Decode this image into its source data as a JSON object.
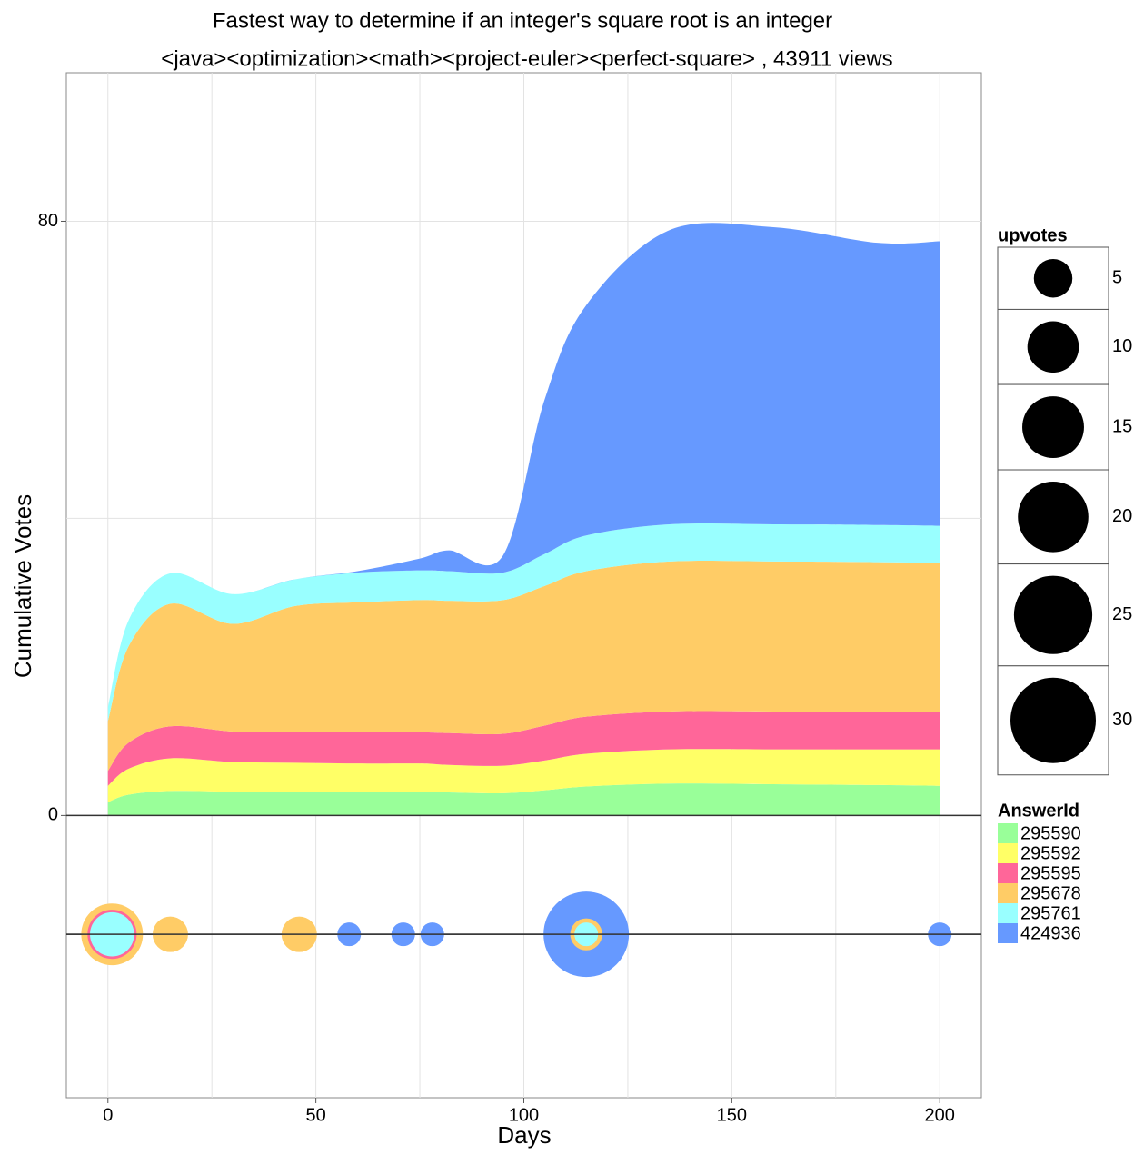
{
  "chart_data": {
    "type": "stream",
    "title": "Fastest way to determine if an integer's square root is an integer",
    "subtitle": "<java><optimization><math><project-euler><perfect-square> ,  43911  views",
    "x_label": "Days",
    "y_label": "Cumulative Votes",
    "x": [
      0,
      5,
      15,
      30,
      45,
      60,
      75,
      82,
      95,
      105,
      115,
      135,
      160,
      185,
      200
    ],
    "series": [
      {
        "name": "295590",
        "color": "#99ff99",
        "values": [
          1.8,
          2.8,
          3.3,
          3.2,
          3.2,
          3.2,
          3.2,
          3.1,
          3.0,
          3.4,
          3.9,
          4.3,
          4.2,
          4.1,
          4.0
        ],
        "event_days": [],
        "event_upvotes": []
      },
      {
        "name": "295592",
        "color": "#ffff66",
        "values": [
          2.2,
          3.5,
          4.4,
          4.0,
          3.9,
          3.8,
          3.8,
          3.7,
          3.7,
          4.0,
          4.4,
          4.6,
          4.7,
          4.8,
          4.9
        ],
        "event_days": [],
        "event_upvotes": []
      },
      {
        "name": "295595",
        "color": "#ff6699",
        "values": [
          2.0,
          3.5,
          4.3,
          4.1,
          4.1,
          4.2,
          4.2,
          4.3,
          4.3,
          4.7,
          5.0,
          5.1,
          5.1,
          5.1,
          5.1
        ],
        "event_days": [
          1
        ],
        "event_upvotes": [
          9
        ]
      },
      {
        "name": "295678",
        "color": "#ffcc66",
        "values": [
          6.7,
          13,
          16.5,
          14.5,
          17,
          17.5,
          17.8,
          17.8,
          18,
          18.8,
          19.6,
          20.2,
          20.2,
          20.1,
          20
        ],
        "event_days": [
          1,
          15,
          46,
          115
        ],
        "event_upvotes": [
          15,
          4,
          4,
          3
        ]
      },
      {
        "name": "295761",
        "color": "#99ffff",
        "values": [
          1.9,
          3.5,
          4.1,
          4,
          3.6,
          4,
          4,
          4,
          3.7,
          4.3,
          4.8,
          5,
          5,
          5,
          5
        ],
        "event_days": [
          1,
          115
        ],
        "event_upvotes": [
          7,
          1
        ]
      },
      {
        "name": "424936",
        "color": "#6699ff",
        "values": [
          0,
          0,
          0,
          0,
          0,
          0.2,
          1.6,
          2.8,
          2.3,
          20.8,
          31,
          39.6,
          40,
          38,
          38.3
        ],
        "event_days": [
          58,
          71,
          78,
          115,
          200
        ],
        "event_upvotes": [
          1,
          1,
          1,
          30,
          1
        ]
      }
    ],
    "bubble_y": -16,
    "hlines": [
      0
    ],
    "xlim": [
      -10,
      210
    ],
    "xticks": [
      0,
      50,
      100,
      150,
      200
    ],
    "xgrid": [
      0,
      25,
      50,
      75,
      100,
      125,
      150,
      175,
      200
    ],
    "ylim": [
      -38,
      100
    ],
    "yticks": [
      0,
      80
    ],
    "ygrid": [
      0,
      40,
      80
    ],
    "size_legend_title": "upvotes",
    "size_legend": [
      5,
      10,
      15,
      20,
      25,
      30
    ],
    "color_legend_title": "AnswerId"
  }
}
